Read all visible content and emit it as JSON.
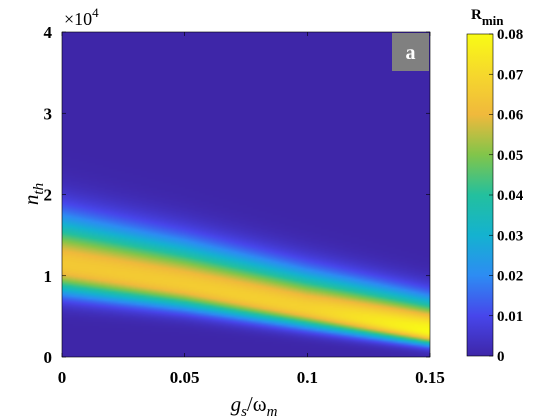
{
  "chart_data": {
    "type": "heatmap",
    "title": "",
    "panel_label": "a",
    "xlabel": {
      "base": "g",
      "sub": "s",
      "mid": "/ω",
      "sub2": "m"
    },
    "ylabel": {
      "base": "n",
      "sub": "th"
    },
    "x_range": [
      0,
      0.15
    ],
    "y_range": [
      0,
      40000
    ],
    "x_ticks": [
      "0",
      "0.05",
      "0.1",
      "0.15"
    ],
    "x_tick_values": [
      0,
      0.05,
      0.1,
      0.15
    ],
    "y_ticks": [
      "0",
      "1",
      "2",
      "3",
      "4"
    ],
    "y_tick_values": [
      0,
      10000,
      20000,
      30000,
      40000
    ],
    "y_multiplier": {
      "base": "×10",
      "exp": "4"
    },
    "colorbar": {
      "label": {
        "base": "R",
        "sub": "min"
      },
      "range": [
        0,
        0.08
      ],
      "ticks": [
        "0",
        "0.01",
        "0.02",
        "0.03",
        "0.04",
        "0.05",
        "0.06",
        "0.07",
        "0.08"
      ],
      "tick_values": [
        0,
        0.01,
        0.02,
        0.03,
        0.04,
        0.05,
        0.06,
        0.07,
        0.08
      ],
      "colormap": "parula"
    },
    "ridge": {
      "description_points_x": [
        0,
        0.05,
        0.1,
        0.15
      ],
      "peak_n_th": [
        11500,
        9000,
        6000,
        3200
      ],
      "peak_value": [
        0.065,
        0.066,
        0.068,
        0.08
      ]
    }
  }
}
